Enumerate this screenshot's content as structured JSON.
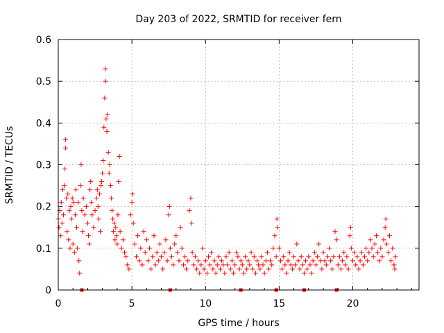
{
  "chart_data": {
    "type": "scatter",
    "title": "Day 203 of 2022, SRMTID for receiver fern",
    "xlabel": "GPS time / hours",
    "ylabel": "SRMTID / TECUs",
    "xlim": [
      0,
      24.5
    ],
    "ylim": [
      0,
      0.6
    ],
    "grid": true,
    "marker": "+",
    "color": "#ff0000",
    "x_ticks": [
      0,
      5,
      10,
      15,
      20
    ],
    "x_tick_labels": [
      "0",
      "5",
      "10",
      "15",
      "20"
    ],
    "y_ticks": [
      0,
      0.1,
      0.2,
      0.3,
      0.4,
      0.5,
      0.6
    ],
    "y_tick_labels": [
      "0",
      "0.1",
      "0.2",
      "0.3",
      "0.4",
      "0.5",
      "0.6"
    ],
    "baseline_markers_x": [
      1.6,
      7.6,
      12.4,
      14.8,
      16.7,
      18.9
    ],
    "series": [
      {
        "name": "SRMTID",
        "points": [
          [
            0.0,
            0.17
          ],
          [
            0.05,
            0.15
          ],
          [
            0.1,
            0.19
          ],
          [
            0.15,
            0.13
          ],
          [
            0.2,
            0.21
          ],
          [
            0.25,
            0.16
          ],
          [
            0.3,
            0.24
          ],
          [
            0.35,
            0.18
          ],
          [
            0.4,
            0.25
          ],
          [
            0.45,
            0.29
          ],
          [
            0.5,
            0.34
          ],
          [
            0.5,
            0.36
          ],
          [
            0.55,
            0.22
          ],
          [
            0.6,
            0.14
          ],
          [
            0.65,
            0.23
          ],
          [
            0.7,
            0.12
          ],
          [
            0.75,
            0.19
          ],
          [
            0.8,
            0.1
          ],
          [
            0.85,
            0.2
          ],
          [
            0.9,
            0.17
          ],
          [
            0.95,
            0.22
          ],
          [
            1.0,
            0.11
          ],
          [
            1.05,
            0.21
          ],
          [
            1.1,
            0.09
          ],
          [
            1.15,
            0.18
          ],
          [
            1.2,
            0.24
          ],
          [
            1.25,
            0.15
          ],
          [
            1.3,
            0.1
          ],
          [
            1.35,
            0.21
          ],
          [
            1.4,
            0.07
          ],
          [
            1.45,
            0.04
          ],
          [
            1.5,
            0.25
          ],
          [
            1.55,
            0.3
          ],
          [
            1.6,
            0.19
          ],
          [
            1.65,
            0.14
          ],
          [
            1.7,
            0.22
          ],
          [
            1.8,
            0.18
          ],
          [
            1.9,
            0.2
          ],
          [
            2.0,
            0.16
          ],
          [
            2.05,
            0.13
          ],
          [
            2.1,
            0.11
          ],
          [
            2.15,
            0.24
          ],
          [
            2.2,
            0.26
          ],
          [
            2.25,
            0.21
          ],
          [
            2.3,
            0.18
          ],
          [
            2.4,
            0.15
          ],
          [
            2.5,
            0.19
          ],
          [
            2.6,
            0.22
          ],
          [
            2.65,
            0.24
          ],
          [
            2.7,
            0.2
          ],
          [
            2.75,
            0.17
          ],
          [
            2.8,
            0.23
          ],
          [
            2.85,
            0.14
          ],
          [
            2.9,
            0.25
          ],
          [
            2.95,
            0.26
          ],
          [
            3.0,
            0.28
          ],
          [
            3.05,
            0.31
          ],
          [
            3.1,
            0.39
          ],
          [
            3.15,
            0.46
          ],
          [
            3.2,
            0.5
          ],
          [
            3.2,
            0.53
          ],
          [
            3.25,
            0.41
          ],
          [
            3.3,
            0.38
          ],
          [
            3.35,
            0.42
          ],
          [
            3.4,
            0.33
          ],
          [
            3.45,
            0.28
          ],
          [
            3.5,
            0.3
          ],
          [
            3.55,
            0.25
          ],
          [
            3.6,
            0.22
          ],
          [
            3.65,
            0.19
          ],
          [
            3.7,
            0.17
          ],
          [
            3.75,
            0.14
          ],
          [
            3.8,
            0.16
          ],
          [
            3.85,
            0.12
          ],
          [
            3.9,
            0.15
          ],
          [
            3.95,
            0.13
          ],
          [
            4.0,
            0.11
          ],
          [
            4.05,
            0.18
          ],
          [
            4.1,
            0.26
          ],
          [
            4.15,
            0.32
          ],
          [
            4.2,
            0.14
          ],
          [
            4.3,
            0.1
          ],
          [
            4.4,
            0.12
          ],
          [
            4.5,
            0.09
          ],
          [
            4.6,
            0.08
          ],
          [
            4.7,
            0.06
          ],
          [
            4.8,
            0.05
          ],
          [
            4.9,
            0.18
          ],
          [
            5.0,
            0.21
          ],
          [
            5.05,
            0.23
          ],
          [
            5.1,
            0.16
          ],
          [
            5.2,
            0.11
          ],
          [
            5.3,
            0.08
          ],
          [
            5.4,
            0.13
          ],
          [
            5.5,
            0.07
          ],
          [
            5.6,
            0.1
          ],
          [
            5.7,
            0.06
          ],
          [
            5.8,
            0.14
          ],
          [
            5.9,
            0.09
          ],
          [
            6.0,
            0.12
          ],
          [
            6.1,
            0.07
          ],
          [
            6.2,
            0.1
          ],
          [
            6.3,
            0.05
          ],
          [
            6.4,
            0.08
          ],
          [
            6.5,
            0.13
          ],
          [
            6.6,
            0.06
          ],
          [
            6.7,
            0.09
          ],
          [
            6.8,
            0.07
          ],
          [
            6.9,
            0.11
          ],
          [
            7.0,
            0.08
          ],
          [
            7.1,
            0.05
          ],
          [
            7.2,
            0.09
          ],
          [
            7.3,
            0.12
          ],
          [
            7.4,
            0.07
          ],
          [
            7.5,
            0.18
          ],
          [
            7.55,
            0.2
          ],
          [
            7.6,
            0.1
          ],
          [
            7.7,
            0.08
          ],
          [
            7.8,
            0.06
          ],
          [
            7.9,
            0.11
          ],
          [
            8.0,
            0.13
          ],
          [
            8.1,
            0.09
          ],
          [
            8.2,
            0.07
          ],
          [
            8.3,
            0.15
          ],
          [
            8.4,
            0.1
          ],
          [
            8.5,
            0.06
          ],
          [
            8.6,
            0.08
          ],
          [
            8.7,
            0.05
          ],
          [
            8.8,
            0.07
          ],
          [
            8.9,
            0.19
          ],
          [
            9.0,
            0.22
          ],
          [
            9.05,
            0.16
          ],
          [
            9.1,
            0.09
          ],
          [
            9.2,
            0.06
          ],
          [
            9.3,
            0.08
          ],
          [
            9.4,
            0.05
          ],
          [
            9.5,
            0.07
          ],
          [
            9.6,
            0.04
          ],
          [
            9.7,
            0.06
          ],
          [
            9.8,
            0.1
          ],
          [
            9.9,
            0.05
          ],
          [
            10.0,
            0.07
          ],
          [
            10.1,
            0.04
          ],
          [
            10.2,
            0.08
          ],
          [
            10.3,
            0.06
          ],
          [
            10.4,
            0.09
          ],
          [
            10.5,
            0.05
          ],
          [
            10.6,
            0.07
          ],
          [
            10.7,
            0.04
          ],
          [
            10.8,
            0.06
          ],
          [
            10.9,
            0.08
          ],
          [
            11.0,
            0.05
          ],
          [
            11.1,
            0.07
          ],
          [
            11.2,
            0.06
          ],
          [
            11.3,
            0.04
          ],
          [
            11.4,
            0.08
          ],
          [
            11.5,
            0.06
          ],
          [
            11.6,
            0.09
          ],
          [
            11.7,
            0.05
          ],
          [
            11.8,
            0.07
          ],
          [
            11.9,
            0.04
          ],
          [
            12.0,
            0.06
          ],
          [
            12.1,
            0.09
          ],
          [
            12.2,
            0.08
          ],
          [
            12.3,
            0.05
          ],
          [
            12.4,
            0.07
          ],
          [
            12.5,
            0.06
          ],
          [
            12.6,
            0.04
          ],
          [
            12.7,
            0.08
          ],
          [
            12.8,
            0.05
          ],
          [
            12.9,
            0.07
          ],
          [
            13.0,
            0.06
          ],
          [
            13.1,
            0.09
          ],
          [
            13.2,
            0.05
          ],
          [
            13.3,
            0.08
          ],
          [
            13.4,
            0.04
          ],
          [
            13.5,
            0.07
          ],
          [
            13.6,
            0.06
          ],
          [
            13.7,
            0.05
          ],
          [
            13.8,
            0.08
          ],
          [
            13.9,
            0.06
          ],
          [
            14.0,
            0.04
          ],
          [
            14.1,
            0.07
          ],
          [
            14.2,
            0.09
          ],
          [
            14.3,
            0.05
          ],
          [
            14.4,
            0.07
          ],
          [
            14.5,
            0.06
          ],
          [
            14.6,
            0.1
          ],
          [
            14.7,
            0.13
          ],
          [
            14.8,
            0.08
          ],
          [
            14.85,
            0.17
          ],
          [
            14.9,
            0.15
          ],
          [
            15.0,
            0.1
          ],
          [
            15.1,
            0.07
          ],
          [
            15.2,
            0.05
          ],
          [
            15.3,
            0.08
          ],
          [
            15.4,
            0.06
          ],
          [
            15.5,
            0.04
          ],
          [
            15.6,
            0.07
          ],
          [
            15.7,
            0.09
          ],
          [
            15.8,
            0.06
          ],
          [
            15.9,
            0.05
          ],
          [
            16.0,
            0.08
          ],
          [
            16.1,
            0.06
          ],
          [
            16.2,
            0.11
          ],
          [
            16.3,
            0.07
          ],
          [
            16.4,
            0.05
          ],
          [
            16.5,
            0.08
          ],
          [
            16.6,
            0.06
          ],
          [
            16.7,
            0.04
          ],
          [
            16.8,
            0.07
          ],
          [
            16.9,
            0.05
          ],
          [
            17.0,
            0.08
          ],
          [
            17.1,
            0.06
          ],
          [
            17.2,
            0.04
          ],
          [
            17.3,
            0.07
          ],
          [
            17.4,
            0.09
          ],
          [
            17.5,
            0.06
          ],
          [
            17.6,
            0.08
          ],
          [
            17.7,
            0.11
          ],
          [
            17.8,
            0.07
          ],
          [
            17.9,
            0.05
          ],
          [
            18.0,
            0.09
          ],
          [
            18.1,
            0.07
          ],
          [
            18.2,
            0.06
          ],
          [
            18.3,
            0.08
          ],
          [
            18.4,
            0.1
          ],
          [
            18.5,
            0.07
          ],
          [
            18.6,
            0.05
          ],
          [
            18.7,
            0.08
          ],
          [
            18.8,
            0.14
          ],
          [
            18.9,
            0.12
          ],
          [
            19.0,
            0.06
          ],
          [
            19.1,
            0.08
          ],
          [
            19.2,
            0.05
          ],
          [
            19.3,
            0.07
          ],
          [
            19.4,
            0.09
          ],
          [
            19.5,
            0.06
          ],
          [
            19.6,
            0.08
          ],
          [
            19.7,
            0.05
          ],
          [
            19.8,
            0.13
          ],
          [
            19.85,
            0.15
          ],
          [
            19.9,
            0.1
          ],
          [
            20.0,
            0.07
          ],
          [
            20.1,
            0.09
          ],
          [
            20.2,
            0.06
          ],
          [
            20.3,
            0.08
          ],
          [
            20.4,
            0.05
          ],
          [
            20.5,
            0.07
          ],
          [
            20.6,
            0.09
          ],
          [
            20.7,
            0.06
          ],
          [
            20.8,
            0.08
          ],
          [
            20.9,
            0.1
          ],
          [
            21.0,
            0.07
          ],
          [
            21.1,
            0.09
          ],
          [
            21.2,
            0.12
          ],
          [
            21.3,
            0.1
          ],
          [
            21.4,
            0.08
          ],
          [
            21.5,
            0.11
          ],
          [
            21.6,
            0.13
          ],
          [
            21.7,
            0.09
          ],
          [
            21.8,
            0.07
          ],
          [
            21.9,
            0.1
          ],
          [
            22.0,
            0.08
          ],
          [
            22.1,
            0.12
          ],
          [
            22.2,
            0.15
          ],
          [
            22.25,
            0.17
          ],
          [
            22.3,
            0.11
          ],
          [
            22.4,
            0.09
          ],
          [
            22.5,
            0.13
          ],
          [
            22.6,
            0.07
          ],
          [
            22.7,
            0.1
          ],
          [
            22.8,
            0.06
          ],
          [
            22.85,
            0.05
          ],
          [
            22.9,
            0.08
          ]
        ]
      }
    ]
  }
}
